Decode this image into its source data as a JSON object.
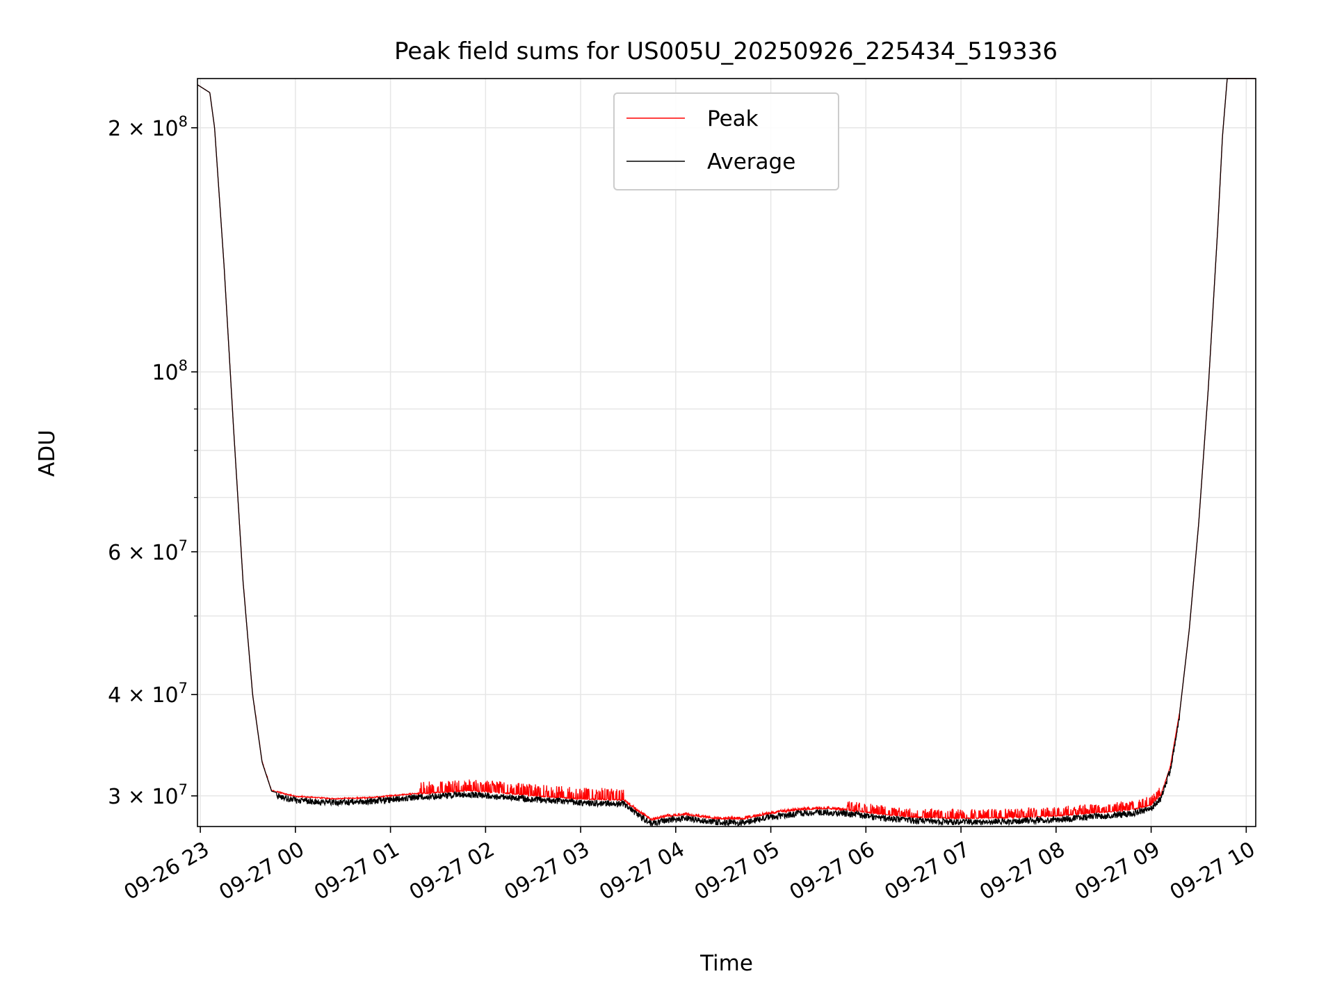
{
  "chart_data": {
    "type": "line",
    "title": "Peak field sums for US005U_20250926_225434_519336",
    "xlabel": "Time",
    "ylabel": "ADU",
    "yscale": "log",
    "ylim": [
      27500000,
      230000000
    ],
    "xlim_hours": [
      22.97,
      34.1
    ],
    "grid": true,
    "legend_placement": "upper center",
    "x_ticks": [
      {
        "h": 23,
        "label": "09-26 23"
      },
      {
        "h": 24,
        "label": "09-27 00"
      },
      {
        "h": 25,
        "label": "09-27 01"
      },
      {
        "h": 26,
        "label": "09-27 02"
      },
      {
        "h": 27,
        "label": "09-27 03"
      },
      {
        "h": 28,
        "label": "09-27 04"
      },
      {
        "h": 29,
        "label": "09-27 05"
      },
      {
        "h": 30,
        "label": "09-27 06"
      },
      {
        "h": 31,
        "label": "09-27 07"
      },
      {
        "h": 32,
        "label": "09-27 08"
      },
      {
        "h": 33,
        "label": "09-27 09"
      },
      {
        "h": 34,
        "label": "09-27 10"
      }
    ],
    "y_major_ticks": [
      {
        "v": 30000000,
        "mant": "3",
        "exp": "7"
      },
      {
        "v": 40000000,
        "mant": "4",
        "exp": "7"
      },
      {
        "v": 60000000,
        "mant": "6",
        "exp": "7"
      },
      {
        "v": 100000000,
        "mant": "",
        "exp": "8"
      },
      {
        "v": 200000000,
        "mant": "2",
        "exp": "8"
      }
    ],
    "y_minor_ticks": [
      50000000,
      70000000,
      80000000,
      90000000
    ],
    "series": [
      {
        "name": "Peak",
        "color": "#ff0000",
        "spike_segments": [
          {
            "from": 23.3,
            "to": 25.3,
            "amp": 0.004
          },
          {
            "from": 25.3,
            "to": 27.45,
            "amp": 0.035
          },
          {
            "from": 27.45,
            "to": 29.8,
            "amp": 0.008
          },
          {
            "from": 29.8,
            "to": 33.1,
            "amp": 0.028
          }
        ]
      },
      {
        "name": "Average",
        "color": "#000000",
        "baseline": {
          "hours": [
            22.97,
            23.1,
            23.15,
            23.25,
            23.35,
            23.45,
            23.55,
            23.65,
            23.75,
            24.0,
            24.4,
            24.8,
            25.2,
            25.8,
            26.2,
            26.6,
            27.0,
            27.45,
            27.6,
            27.75,
            27.9,
            28.1,
            28.4,
            28.7,
            29.0,
            29.3,
            29.6,
            29.9,
            30.2,
            30.5,
            31.0,
            31.5,
            32.0,
            32.5,
            32.8,
            33.0,
            33.1,
            33.2,
            33.3,
            33.4,
            33.5,
            33.6,
            33.7,
            33.75,
            33.8,
            34.1
          ],
          "values": [
            226000000,
            221000000,
            200000000,
            135000000,
            85000000,
            55000000,
            40000000,
            33000000,
            30400000,
            29900000,
            29700000,
            29800000,
            30100000,
            30400000,
            30200000,
            29900000,
            29700000,
            29600000,
            28700000,
            27950000,
            28250000,
            28400000,
            28100000,
            28050000,
            28500000,
            28800000,
            28900000,
            28700000,
            28400000,
            28200000,
            28100000,
            28150000,
            28300000,
            28600000,
            28800000,
            29200000,
            30000000,
            32500000,
            38000000,
            48000000,
            65000000,
            95000000,
            150000000,
            195000000,
            230000000,
            230000000
          ]
        }
      }
    ]
  }
}
